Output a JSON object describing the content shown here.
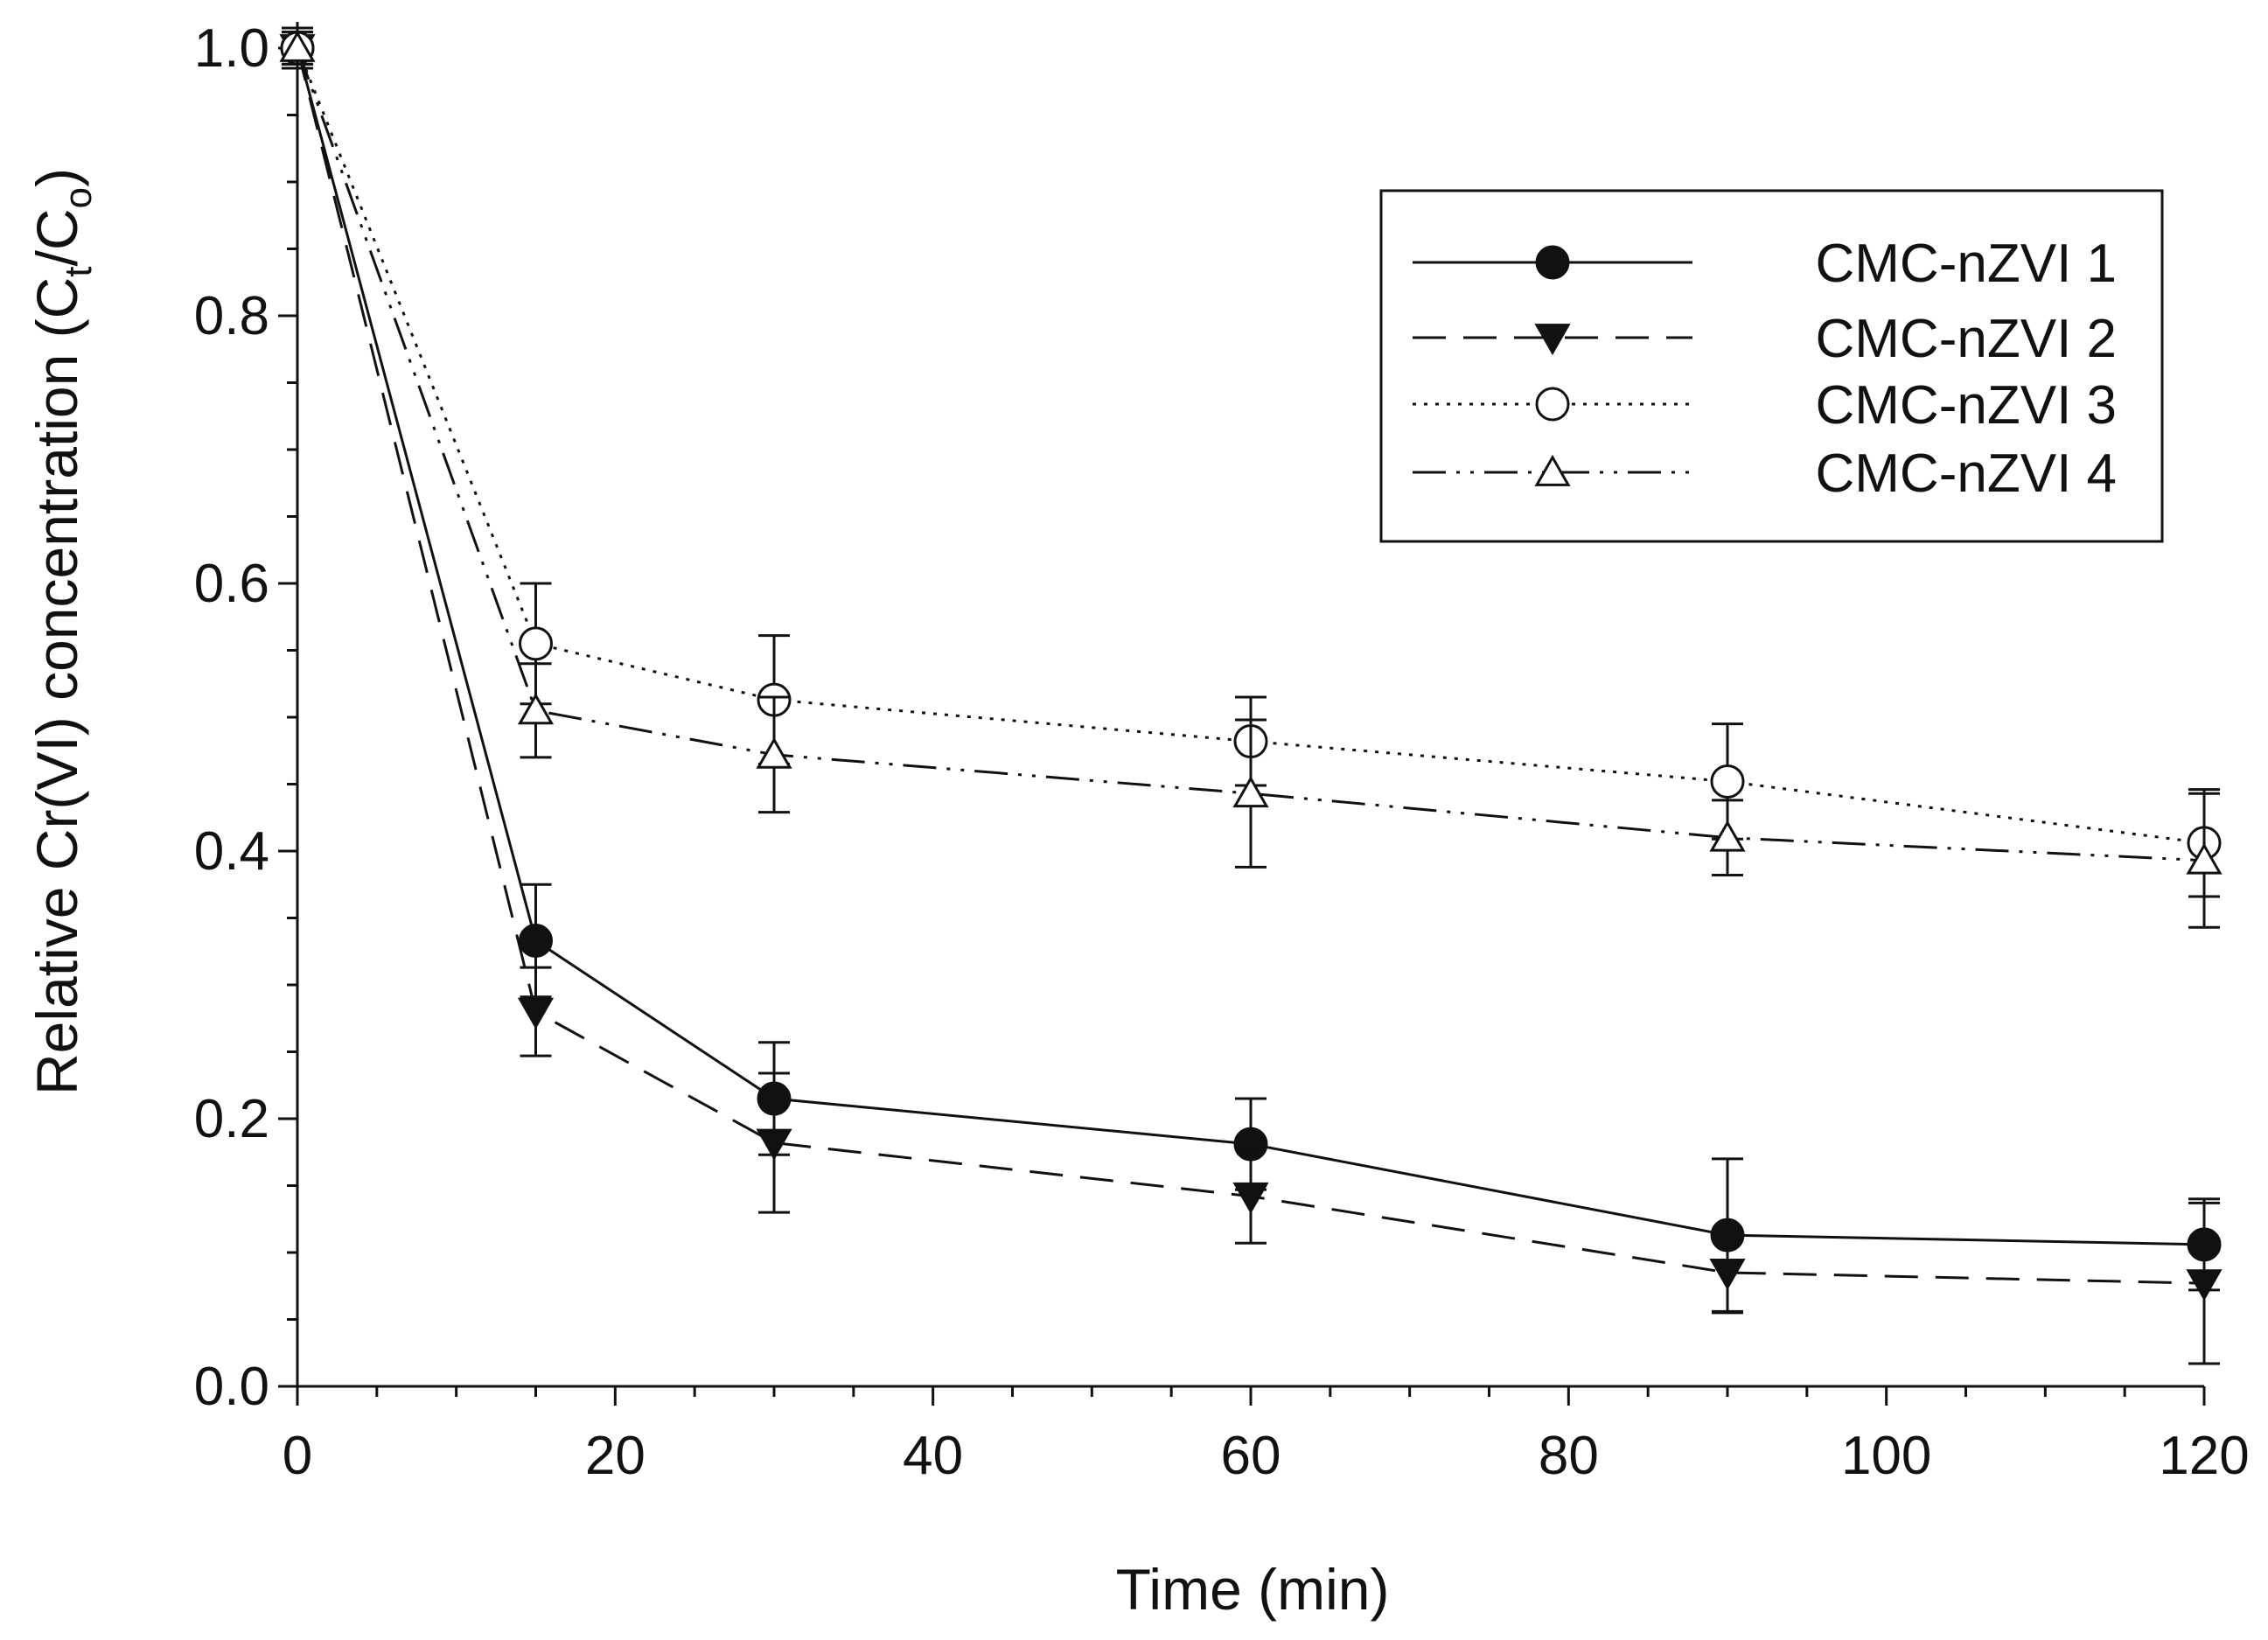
{
  "chart_data": {
    "type": "line",
    "title": "",
    "xlabel": "Time (min)",
    "ylabel": {
      "prefix": "Relative Cr(VI) concentration (C",
      "sub1": "t",
      "mid": "/C",
      "sub2": "o",
      "suffix": ")"
    },
    "xlim": [
      0,
      120
    ],
    "ylim": [
      0,
      1.0
    ],
    "xticks": [
      0,
      20,
      40,
      60,
      80,
      100,
      120
    ],
    "xtick_labels": [
      "0",
      "20",
      "40",
      "60",
      "80",
      "100",
      "120"
    ],
    "yticks": [
      0.0,
      0.2,
      0.4,
      0.6,
      0.8,
      1.0
    ],
    "ytick_labels": [
      "0.0",
      "0.2",
      "0.4",
      "0.6",
      "0.8",
      "1.0"
    ],
    "legend_position": "top-right",
    "x": [
      0,
      15,
      30,
      60,
      90,
      120
    ],
    "series": [
      {
        "name": "CMC-nZVI 1",
        "marker": "filled-circle",
        "line_style": "solid",
        "values": [
          1.0,
          0.333,
          0.215,
          0.181,
          0.113,
          0.106
        ],
        "errors": [
          0.015,
          0.042,
          0.042,
          0.034,
          0.057,
          0.034
        ]
      },
      {
        "name": "CMC-nZVI 2",
        "marker": "filled-triangle-down",
        "line_style": "dashed",
        "values": [
          1.0,
          0.28,
          0.182,
          0.142,
          0.085,
          0.077
        ],
        "errors": [
          0.012,
          0.033,
          0.052,
          0.035,
          0.03,
          0.06
        ]
      },
      {
        "name": "CMC-nZVI 3",
        "marker": "open-circle",
        "line_style": "dotted",
        "values": [
          1.0,
          0.555,
          0.513,
          0.482,
          0.452,
          0.406
        ],
        "errors": [
          0.012,
          0.045,
          0.048,
          0.033,
          0.043,
          0.04
        ]
      },
      {
        "name": "CMC-nZVI 4",
        "marker": "open-triangle-up",
        "line_style": "dash-dot-dot",
        "values": [
          1.0,
          0.505,
          0.472,
          0.443,
          0.41,
          0.393
        ],
        "errors": [
          0.012,
          0.035,
          0.043,
          0.055,
          0.028,
          0.05
        ]
      }
    ]
  }
}
